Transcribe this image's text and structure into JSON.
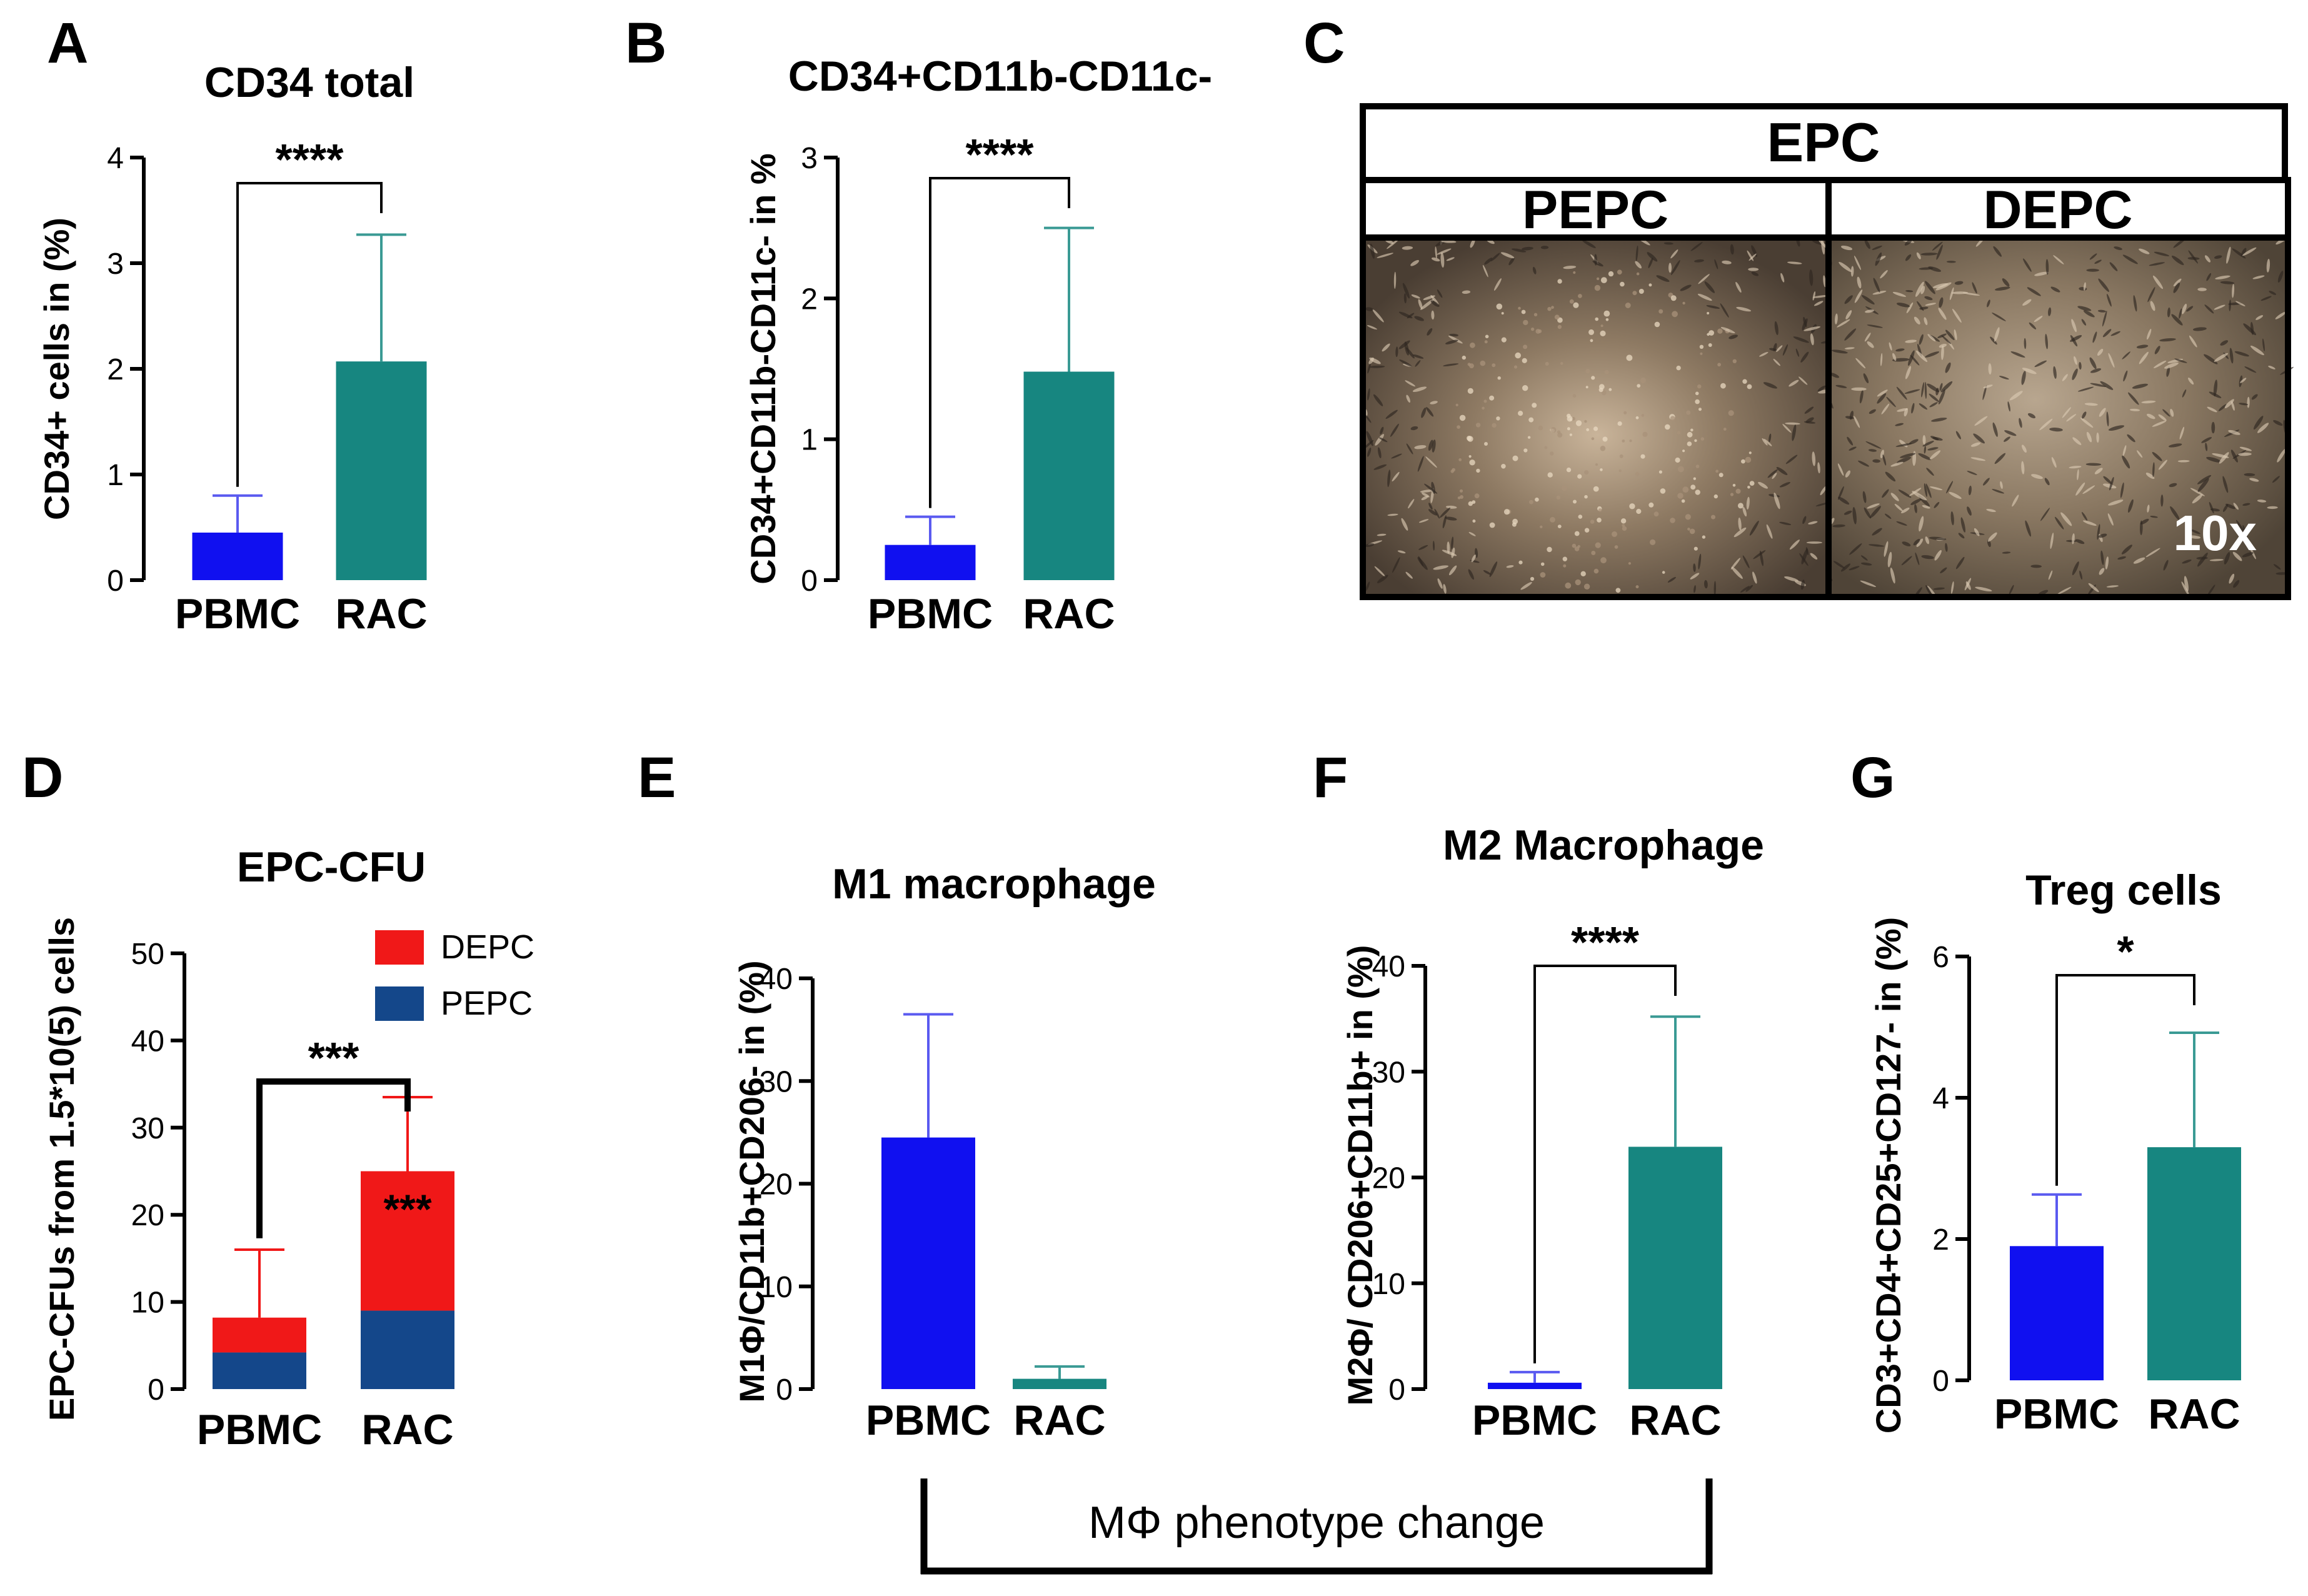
{
  "colors": {
    "pbmc": "#1010f0",
    "pbmc_error": "#5a5af0",
    "rac": "#178680",
    "rac_error": "#3a9a94",
    "depc": "#f01818",
    "pepc": "#14478a",
    "axis": "#000000",
    "micro_bg": "#5b4c3c"
  },
  "microscopy": {
    "panel_letter": "C",
    "header": "EPC",
    "left_label": "PEPC",
    "right_label": "DEPC",
    "magnification": "10x"
  },
  "bracket": {
    "label": "MΦ phenotype change"
  },
  "chart_data": [
    {
      "id": "A",
      "type": "bar",
      "panel_letter": "A",
      "title": "CD34 total",
      "ylabel": "CD34+ cells in (%)",
      "categories": [
        "PBMC",
        "RAC"
      ],
      "values": [
        0.45,
        2.07
      ],
      "errors": [
        0.35,
        1.2
      ],
      "ylim": [
        0,
        4
      ],
      "yticks": [
        0,
        1,
        2,
        3,
        4
      ],
      "significance": "****"
    },
    {
      "id": "B",
      "type": "bar",
      "panel_letter": "B",
      "title": "CD34+CD11b-CD11c-",
      "ylabel": "CD34+CD11b-CD11c- in %",
      "categories": [
        "PBMC",
        "RAC"
      ],
      "values": [
        0.25,
        1.48
      ],
      "errors": [
        0.2,
        1.02
      ],
      "ylim": [
        0,
        3
      ],
      "yticks": [
        0,
        1,
        2,
        3
      ],
      "significance": "****"
    },
    {
      "id": "D",
      "type": "bar",
      "stacked": true,
      "panel_letter": "D",
      "title": "EPC-CFU",
      "ylabel": "EPC-CFUs from 1.5*10(5) cells",
      "categories": [
        "PBMC",
        "RAC"
      ],
      "series": [
        {
          "name": "PEPC",
          "values": [
            4.2,
            9.0
          ],
          "errors": [
            3.8,
            5.5
          ]
        },
        {
          "name": "DEPC",
          "values": [
            4.0,
            16.0
          ],
          "errors": [
            7.8,
            8.5
          ]
        }
      ],
      "legend": [
        "DEPC",
        "PEPC"
      ],
      "ylim": [
        0,
        50
      ],
      "yticks": [
        0,
        10,
        20,
        30,
        40,
        50
      ],
      "significance": "***",
      "inner_significance": "***"
    },
    {
      "id": "E",
      "type": "bar",
      "panel_letter": "E",
      "title": "M1 macrophage",
      "ylabel": "M1Φ/CD11b+CD206- in (%)",
      "categories": [
        "PBMC",
        "RAC"
      ],
      "values": [
        24.5,
        1.0
      ],
      "errors": [
        12.0,
        1.2
      ],
      "ylim": [
        0,
        40
      ],
      "yticks": [
        0,
        10,
        20,
        30,
        40
      ],
      "significance": ""
    },
    {
      "id": "F",
      "type": "bar",
      "panel_letter": "F",
      "title": "M2 Macrophage",
      "ylabel": "M2Φ/ CD206+CD11b+ in (%)",
      "categories": [
        "PBMC",
        "RAC"
      ],
      "values": [
        0.6,
        22.9
      ],
      "errors": [
        1.0,
        12.3
      ],
      "ylim": [
        0,
        40
      ],
      "yticks": [
        0,
        10,
        20,
        30,
        40
      ],
      "significance": "****"
    },
    {
      "id": "G",
      "type": "bar",
      "panel_letter": "G",
      "title": "Treg cells",
      "ylabel": "CD3+CD4+CD25+CD127- in (%)",
      "categories": [
        "PBMC",
        "RAC"
      ],
      "values": [
        1.9,
        3.3
      ],
      "errors": [
        0.73,
        1.62
      ],
      "ylim": [
        0,
        6
      ],
      "yticks": [
        0,
        2,
        4,
        6
      ],
      "significance": "*"
    }
  ]
}
